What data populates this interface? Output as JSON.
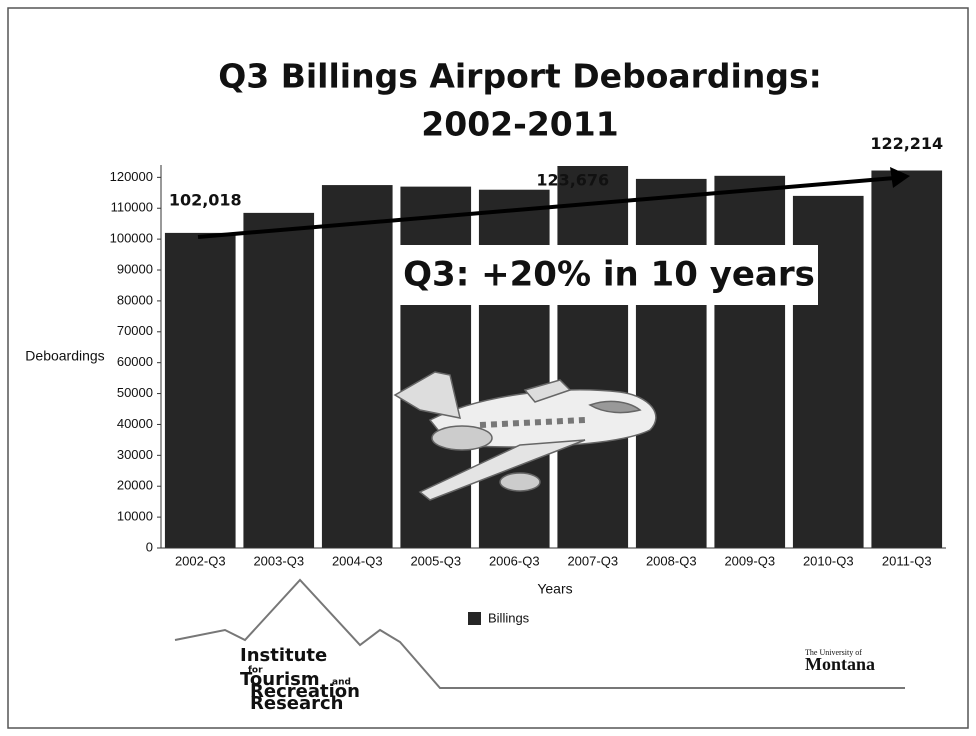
{
  "chart_data": {
    "type": "bar",
    "title": [
      "Q3 Billings Airport Deboardings:",
      "2002-2011"
    ],
    "y_label": "Deboardings",
    "x_label": "Years",
    "annotation": "Q3: +20% in 10 years",
    "categories": [
      "2002-Q3",
      "2003-Q3",
      "2004-Q3",
      "2005-Q3",
      "2006-Q3",
      "2007-Q3",
      "2008-Q3",
      "2009-Q3",
      "2010-Q3",
      "2011-Q3"
    ],
    "series": [
      {
        "name": "Billings",
        "color": "#262626",
        "values": [
          102018,
          108500,
          117500,
          117000,
          116000,
          123676,
          119500,
          120500,
          114000,
          122214
        ],
        "value_labels": [
          "102,018",
          null,
          null,
          null,
          null,
          "123,676",
          null,
          null,
          null,
          "122,214"
        ]
      }
    ],
    "ylim": [
      0,
      124000
    ],
    "yticks": [
      0,
      10000,
      20000,
      30000,
      40000,
      50000,
      60000,
      70000,
      80000,
      90000,
      100000,
      110000,
      120000
    ],
    "grid": false
  },
  "logo_texts": [
    "Institute",
    "for",
    "Tourism",
    "and",
    "Recreation",
    "Research",
    "The University of",
    "Montana"
  ]
}
